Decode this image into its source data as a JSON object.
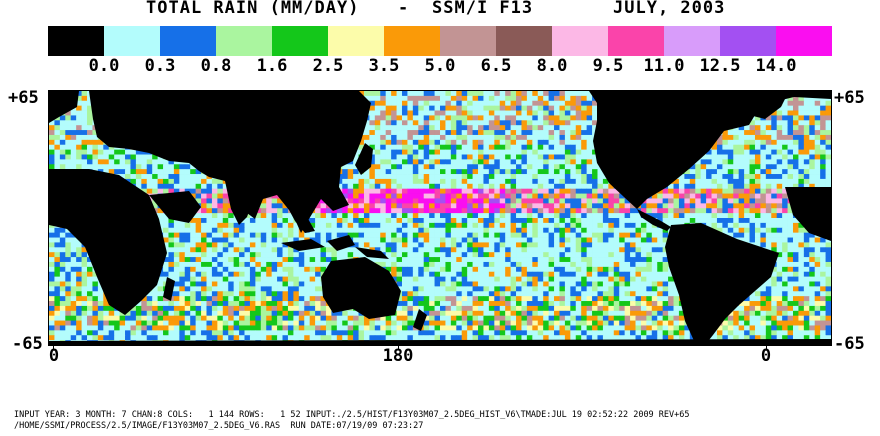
{
  "title": {
    "label": "TOTAL RAIN (MM/DAY)",
    "separator": "-",
    "instrument": "SSM/I F13",
    "date": "JULY, 2003"
  },
  "legend": {
    "colors": [
      "#000000",
      "#b3fcfc",
      "#1670e8",
      "#aaf59f",
      "#14c71a",
      "#fcfcaa",
      "#fa9a08",
      "#c29494",
      "#8a5a57",
      "#fcb8e6",
      "#fa44aa",
      "#d89cfa",
      "#a350f2",
      "#fa0ef0"
    ],
    "ticks": [
      "0.0",
      "0.3",
      "0.8",
      "1.6",
      "2.5",
      "3.5",
      "5.0",
      "6.5",
      "8.0",
      "9.5",
      "11.0",
      "12.5",
      "14.0"
    ]
  },
  "axes": {
    "lat_top_left": "+65",
    "lat_top_right": "+65",
    "lat_bottom_left": "-65",
    "lat_bottom_right": "-65",
    "lon_labels": [
      "0",
      "180",
      "0"
    ]
  },
  "map": {
    "land_color": "#000000",
    "ocean_default": "#b3fcfc",
    "grid_cols": 144,
    "grid_rows": 52
  },
  "footer": {
    "line1": "INPUT YEAR: 3 MONTH: 7 CHAN:8 COLS:   1 144 ROWS:   1 52 INPUT:./2.5/HIST/F13Y03M07_2.5DEG_HIST_V6\\TMADE:JUL 19 02:52:22 2009 REV+65",
    "line2": "/HOME/SSMI/PROCESS/2.5/IMAGE/F13Y03M07_2.5DEG_V6.RAS  RUN DATE:07/19/09 07:23:27"
  }
}
